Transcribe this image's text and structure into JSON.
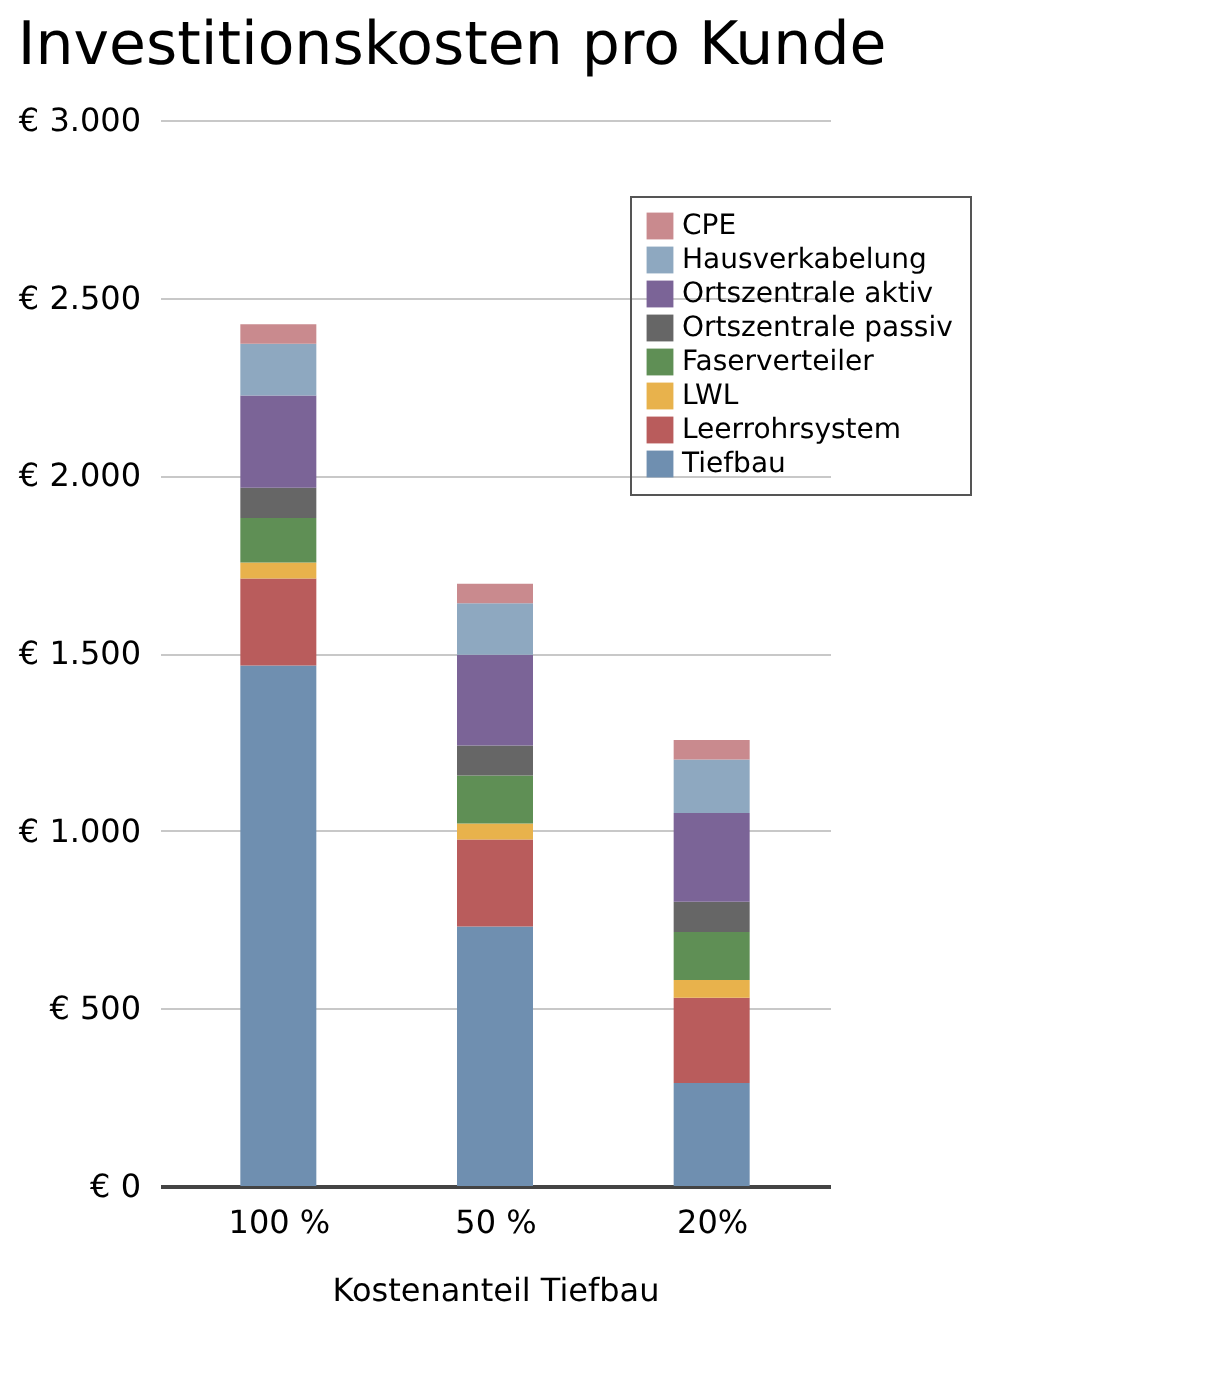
{
  "chart_data": {
    "type": "bar",
    "stacked": true,
    "title": "Investitionskosten pro Kunde",
    "xlabel": "Kostenanteil Tiefbau",
    "categories": [
      "100 %",
      "50 %",
      "20%"
    ],
    "series": [
      {
        "name": "Tiefbau",
        "color": "#6f8fb0",
        "values": [
          1465,
          730,
          290
        ]
      },
      {
        "name": "Leerrohrsystem",
        "color": "#b95c5c",
        "values": [
          245,
          245,
          240
        ]
      },
      {
        "name": "LWL",
        "color": "#e8b24c",
        "values": [
          45,
          45,
          50
        ]
      },
      {
        "name": "Faserverteiler",
        "color": "#5f8f55",
        "values": [
          125,
          135,
          135
        ]
      },
      {
        "name": "Ortszentrale passiv",
        "color": "#666666",
        "values": [
          85,
          85,
          85
        ]
      },
      {
        "name": "Ortszentrale aktiv",
        "color": "#7b6497",
        "values": [
          260,
          255,
          250
        ]
      },
      {
        "name": "Hausverkabelung",
        "color": "#8ea8c0",
        "values": [
          145,
          145,
          150
        ]
      },
      {
        "name": "CPE",
        "color": "#c98a8e",
        "values": [
          55,
          55,
          55
        ]
      }
    ],
    "ylim": [
      0,
      3000
    ],
    "yticks": [
      {
        "value": 0,
        "label": "€ 0"
      },
      {
        "value": 500,
        "label": "€ 500"
      },
      {
        "value": 1000,
        "label": "€ 1.000"
      },
      {
        "value": 1500,
        "label": "€ 1.500"
      },
      {
        "value": 2000,
        "label": "€ 2.000"
      },
      {
        "value": 2500,
        "label": "€ 2.500"
      },
      {
        "value": 3000,
        "label": "€ 3.000"
      }
    ],
    "grid": "y",
    "legend": "top right"
  }
}
